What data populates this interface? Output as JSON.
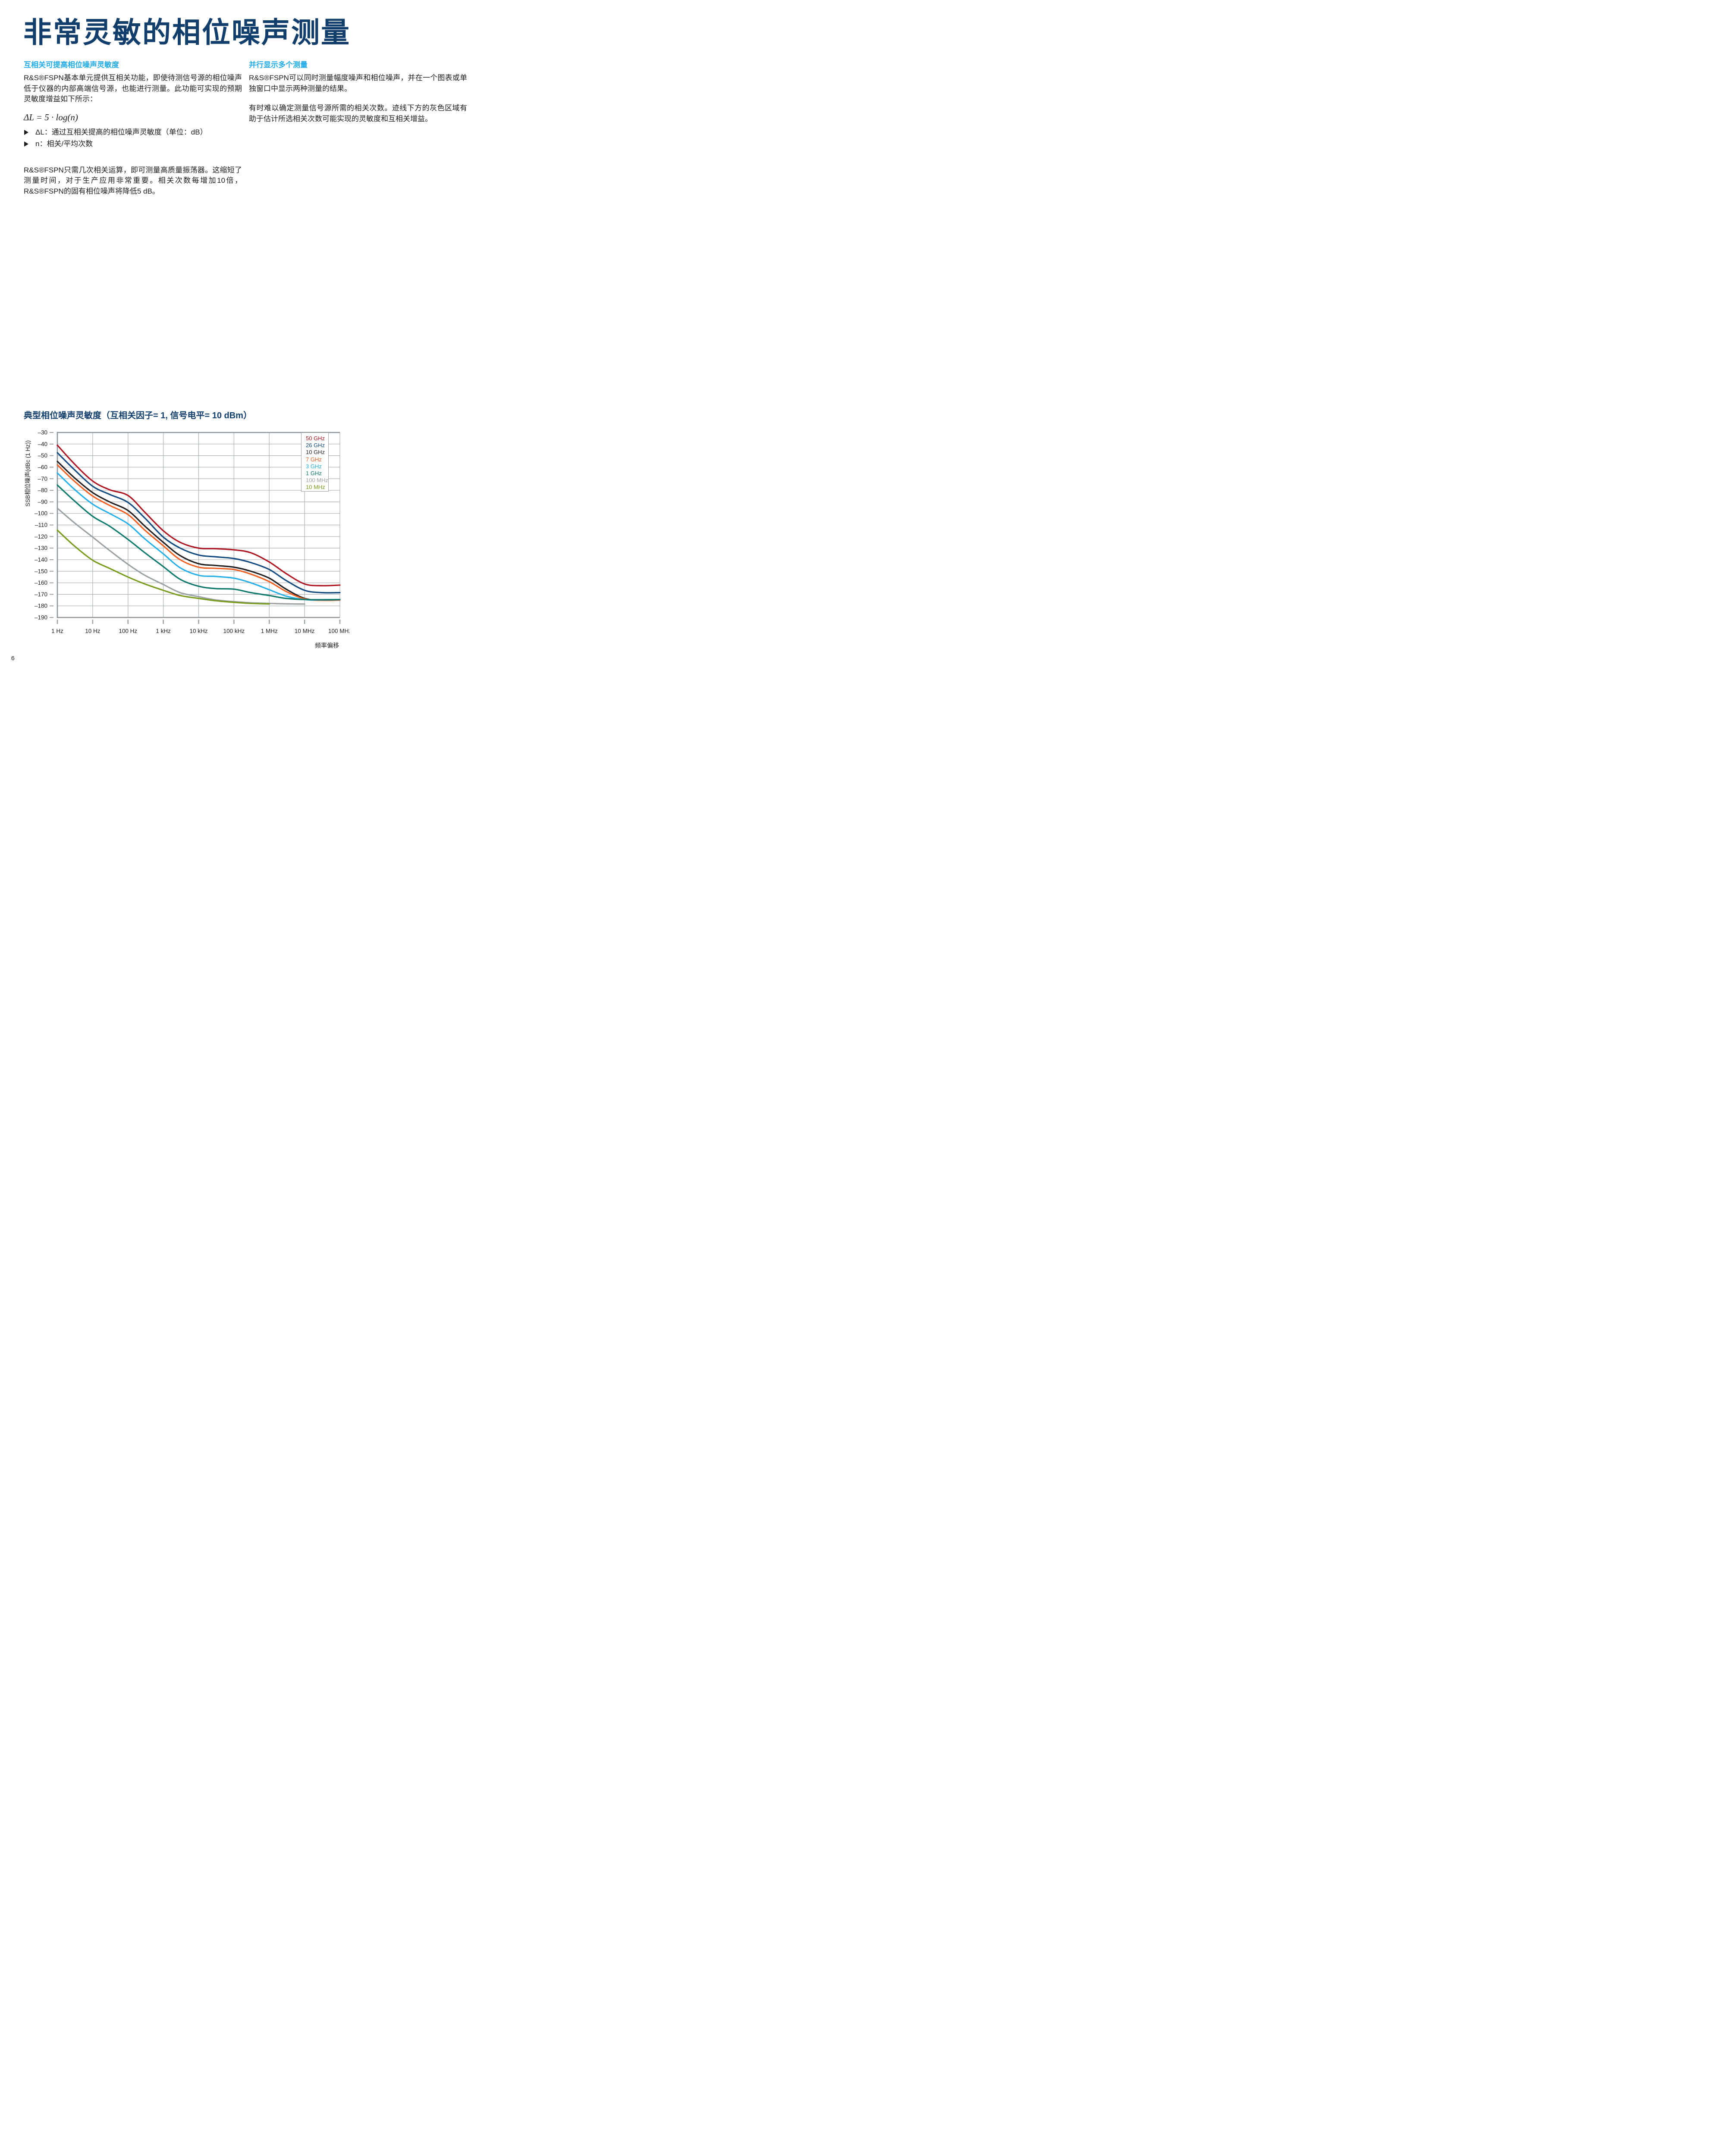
{
  "page": {
    "number": "6"
  },
  "header": {
    "title": "非常灵敏的相位噪声测量"
  },
  "sections": {
    "left": {
      "heading": "互相关可提高相位噪声灵敏度",
      "para1": "R&S®FSPN基本单元提供互相关功能，即使待测信号源的相位噪声低于仪器的内部高端信号源，也能进行测量。此功能可实现的预期灵敏度增益如下所示：",
      "formula": "ΔL = 5 · log(n)",
      "bullets": [
        "ΔL：通过互相关提高的相位噪声灵敏度（单位：dB）",
        "n：相关/平均次数"
      ],
      "para2": "R&S®FSPN只需几次相关运算，即可测量高质量振荡器。这缩短了测量时间，对于生产应用非常重要。相关次数每增加10倍，R&S®FSPN的固有相位噪声将降低5 dB。"
    },
    "right": {
      "heading": "并行显示多个测量",
      "para1": "R&S®FSPN可以同时测量幅度噪声和相位噪声，并在一个图表或单独窗口中显示两种测量的结果。",
      "para2": "有时难以确定测量信号源所需的相关次数。迹线下方的灰色区域有助于估计所选相关次数可能实现的灵敏度和互相关增益。"
    }
  },
  "colors": {
    "title_blue": "#123e6c",
    "heading_cyan": "#23ace8",
    "text": "#1d1d1b",
    "grid_thin": "#a9b0b6",
    "grid_frame": "#8c959b",
    "tick": "#9aa1a7"
  },
  "chart_data": {
    "type": "line",
    "title": "典型相位噪声灵敏度（互相关因子= 1, 信号电平= 10 dBm）",
    "xlabel": "频率偏移",
    "ylabel": "SSB相位噪声(dBc (1 Hz))",
    "x_scale": "log",
    "xlim_hz": [
      1,
      100000000
    ],
    "ylim": [
      -190,
      -30
    ],
    "grid": true,
    "legend_position": "top-right",
    "x_ticks": [
      "1 Hz",
      "10 Hz",
      "100 Hz",
      "1 kHz",
      "10 kHz",
      "100 kHz",
      "1 MHz",
      "10 MHz",
      "100 MHz"
    ],
    "y_ticks": [
      -30,
      -40,
      -50,
      -60,
      -70,
      -80,
      -90,
      -100,
      -110,
      -120,
      -130,
      -140,
      -150,
      -160,
      -170,
      -180,
      -190
    ],
    "y_tick_labels": [
      "–30",
      "–40",
      "–50",
      "–60",
      "–70",
      "–80",
      "–90",
      "–100",
      "–110",
      "–120",
      "–130",
      "–140",
      "–150",
      "–160",
      "–170",
      "–180",
      "–190"
    ],
    "series": [
      {
        "name": "50 GHz",
        "color": "#ae1422",
        "x_hz": [
          1,
          3,
          10,
          30,
          100,
          300,
          1000,
          3000,
          10000,
          30000,
          100000,
          300000,
          1000000,
          3000000,
          10000000,
          30000000,
          100000000
        ],
        "y_dbc": [
          -41,
          -57,
          -72,
          -79.5,
          -84.5,
          -99,
          -115,
          -125,
          -130,
          -130.5,
          -131.5,
          -134,
          -142,
          -152,
          -161,
          -162.5,
          -162
        ]
      },
      {
        "name": "26 GHz",
        "color": "#134b80",
        "x_hz": [
          1,
          3,
          10,
          30,
          100,
          300,
          1000,
          3000,
          10000,
          30000,
          100000,
          300000,
          1000000,
          3000000,
          10000000,
          30000000,
          100000000
        ],
        "y_dbc": [
          -47.5,
          -62,
          -76.5,
          -83.5,
          -90.5,
          -104,
          -120.5,
          -130,
          -136,
          -137.5,
          -139,
          -142.5,
          -148.5,
          -158,
          -166.5,
          -168.5,
          -168.5
        ]
      },
      {
        "name": "10 GHz",
        "color": "#231f20",
        "x_hz": [
          1,
          3,
          10,
          30,
          100,
          300,
          1000,
          3000,
          10000,
          30000,
          100000,
          300000,
          1000000,
          3000000,
          10000000,
          30000000,
          100000000
        ],
        "y_dbc": [
          -55,
          -69,
          -82,
          -90,
          -97.5,
          -111,
          -125,
          -136.5,
          -143.5,
          -145,
          -146.5,
          -150,
          -156,
          -165.5,
          -173.5,
          -175,
          -174.5
        ]
      },
      {
        "name": "7 GHz",
        "color": "#f06022",
        "x_hz": [
          1,
          3,
          10,
          30,
          100,
          300,
          1000,
          3000,
          10000,
          30000,
          100000,
          300000,
          1000000,
          3000000,
          10000000,
          30000000,
          100000000
        ],
        "y_dbc": [
          -58,
          -72,
          -85,
          -93,
          -101,
          -114.5,
          -128,
          -140,
          -146.5,
          -147.5,
          -148.5,
          -152.5,
          -159,
          -167.5,
          -174,
          -175.2,
          -175
        ]
      },
      {
        "name": "3 GHz",
        "color": "#27b0e8",
        "x_hz": [
          1,
          3,
          10,
          30,
          100,
          300,
          1000,
          3000,
          10000,
          30000,
          100000,
          300000,
          1000000,
          3000000,
          10000000,
          30000000,
          100000000
        ],
        "y_dbc": [
          -65,
          -79,
          -92,
          -100,
          -109,
          -122,
          -135,
          -147,
          -153.5,
          -154.5,
          -156,
          -160,
          -166,
          -171.5,
          -174.5,
          -174.8,
          -174.6
        ]
      },
      {
        "name": "1 GHz",
        "color": "#0d7a6c",
        "x_hz": [
          1,
          3,
          10,
          30,
          100,
          300,
          1000,
          3000,
          10000,
          30000,
          100000,
          300000,
          1000000,
          3000000,
          10000000,
          30000000,
          100000000
        ],
        "y_dbc": [
          -75.5,
          -89,
          -102.5,
          -111,
          -122.5,
          -134,
          -146,
          -157,
          -163,
          -165,
          -165.5,
          -168.5,
          -171,
          -173.5,
          -174.5,
          -174.6,
          -174.5
        ]
      },
      {
        "name": "100 MHz",
        "color": "#9ba1a4",
        "x_hz": [
          1,
          3,
          10,
          30,
          100,
          300,
          1000,
          3000,
          10000,
          30000,
          100000,
          300000,
          1000000,
          3000000,
          10000000
        ],
        "y_dbc": [
          -95.5,
          -108,
          -120.5,
          -132,
          -144,
          -153.5,
          -161.5,
          -168.5,
          -172,
          -174.8,
          -176.3,
          -177.3,
          -177.8,
          -178.2,
          -178.4
        ]
      },
      {
        "name": "10 MHz",
        "color": "#7a9c1e",
        "x_hz": [
          1,
          3,
          10,
          30,
          100,
          300,
          1000,
          3000,
          10000,
          30000,
          100000,
          300000,
          1000000
        ],
        "y_dbc": [
          -114.5,
          -128,
          -140.5,
          -147.5,
          -155,
          -161,
          -166.5,
          -171,
          -173.5,
          -175.5,
          -176.9,
          -177.8,
          -178.3
        ]
      }
    ]
  }
}
